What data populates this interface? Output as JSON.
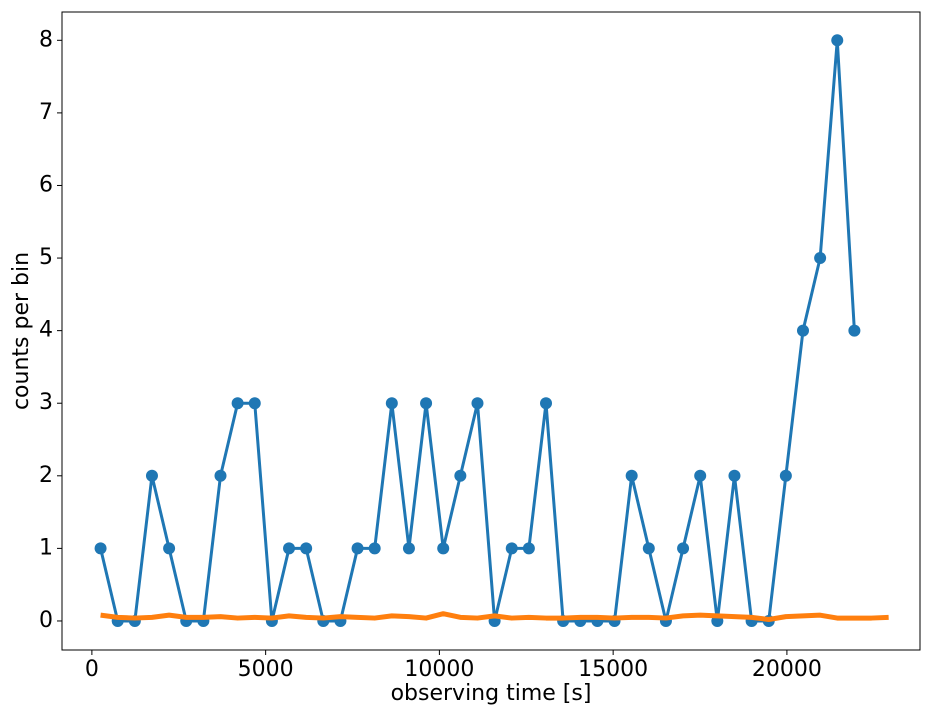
{
  "chart_data": {
    "type": "line",
    "xlabel": "observing time [s]",
    "ylabel": "counts per bin",
    "xlim": [
      -860,
      23830
    ],
    "ylim": [
      -0.4,
      8.39
    ],
    "xticks": [
      0,
      5000,
      10000,
      15000,
      20000
    ],
    "yticks": [
      0,
      1,
      2,
      3,
      4,
      5,
      6,
      7,
      8
    ],
    "series": [
      {
        "color": "#1f77b4",
        "markers": true,
        "x": [
          250,
          743,
          1236,
          1729,
          2222,
          2715,
          3208,
          3701,
          4194,
          4687,
          5180,
          5673,
          6166,
          6659,
          7152,
          7645,
          8138,
          8631,
          9124,
          9617,
          10110,
          10603,
          11096,
          11589,
          12082,
          12575,
          13068,
          13561,
          14054,
          14547,
          15040,
          15533,
          16026,
          16519,
          17012,
          17505,
          17998,
          18491,
          18984,
          19477,
          19970,
          20463,
          20956,
          21449,
          21942
        ],
        "values": [
          1,
          0,
          0,
          2,
          1,
          0,
          0,
          2,
          3,
          3,
          0,
          1,
          1,
          0,
          0,
          1,
          1,
          3,
          1,
          3,
          1,
          2,
          3,
          0,
          1,
          1,
          3,
          0,
          0,
          0,
          0,
          2,
          1,
          0,
          1,
          2,
          0,
          2,
          0,
          0,
          2,
          4,
          5,
          8,
          4
        ]
      },
      {
        "color": "#ff7f0e",
        "markers": false,
        "x": [
          250,
          743,
          1236,
          1729,
          2222,
          2715,
          3208,
          3701,
          4194,
          4687,
          5180,
          5673,
          6166,
          6659,
          7152,
          7645,
          8138,
          8631,
          9124,
          9617,
          10110,
          10603,
          11096,
          11589,
          12082,
          12575,
          13068,
          13561,
          14054,
          14547,
          15040,
          15533,
          16026,
          16519,
          17012,
          17505,
          17998,
          18491,
          18984,
          19477,
          19970,
          20463,
          20956,
          21449,
          21942,
          22435,
          22928
        ],
        "values": [
          0.08,
          0.05,
          0.04,
          0.05,
          0.08,
          0.05,
          0.05,
          0.06,
          0.04,
          0.05,
          0.04,
          0.07,
          0.05,
          0.04,
          0.06,
          0.05,
          0.04,
          0.07,
          0.06,
          0.04,
          0.1,
          0.05,
          0.04,
          0.07,
          0.04,
          0.05,
          0.04,
          0.04,
          0.05,
          0.05,
          0.04,
          0.05,
          0.05,
          0.04,
          0.07,
          0.08,
          0.07,
          0.06,
          0.05,
          0.02,
          0.06,
          0.07,
          0.08,
          0.04,
          0.04,
          0.04,
          0.05
        ]
      }
    ]
  }
}
